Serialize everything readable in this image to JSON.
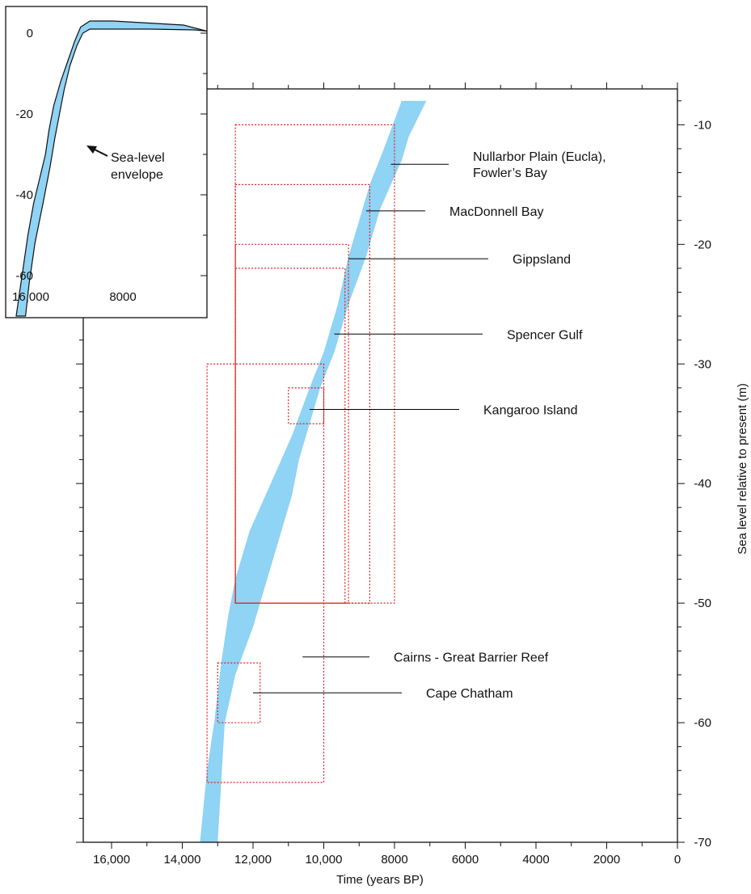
{
  "chart_data": [
    {
      "type": "area",
      "xlabel": "Time (years BP)",
      "ylabel": "Sea level relative to present (m)",
      "xlim": [
        16800,
        0
      ],
      "ylim": [
        -70,
        -7
      ],
      "x_reversed": true,
      "x_tick_labels": [
        "16,000",
        "14,000",
        "12,000",
        "10,000",
        "8000",
        "6000",
        "4000",
        "2000",
        "0"
      ],
      "x_ticks": [
        16000,
        14000,
        12000,
        10000,
        8000,
        6000,
        4000,
        2000,
        0
      ],
      "y_tick_labels": [
        "-10",
        "-20",
        "-30",
        "-40",
        "-50",
        "-60",
        "-70"
      ],
      "y_ticks": [
        -10,
        -20,
        -30,
        -40,
        -50,
        -60,
        -70
      ],
      "colors": {
        "envelope": "#8fd3f5",
        "boxes": "#e02020",
        "leaders": "#000000"
      },
      "envelope": {
        "left_edge": [
          [
            7800,
            -8
          ],
          [
            8300,
            -12
          ],
          [
            8700,
            -15
          ],
          [
            9000,
            -18
          ],
          [
            9300,
            -21
          ],
          [
            9600,
            -25
          ],
          [
            10000,
            -29
          ],
          [
            10400,
            -32
          ],
          [
            10900,
            -36
          ],
          [
            11500,
            -40
          ],
          [
            12100,
            -44
          ],
          [
            12500,
            -48
          ],
          [
            12700,
            -51
          ],
          [
            12900,
            -55
          ],
          [
            13100,
            -60
          ],
          [
            13300,
            -64
          ],
          [
            13500,
            -70
          ]
        ],
        "right_edge": [
          [
            7100,
            -8
          ],
          [
            7600,
            -11
          ],
          [
            7800,
            -13
          ],
          [
            8100,
            -15
          ],
          [
            8400,
            -17
          ],
          [
            8800,
            -21
          ],
          [
            9300,
            -25
          ],
          [
            9700,
            -29
          ],
          [
            10100,
            -32
          ],
          [
            10400,
            -35
          ],
          [
            10700,
            -38
          ],
          [
            10900,
            -41
          ],
          [
            11300,
            -45
          ],
          [
            11700,
            -49
          ],
          [
            12000,
            -52
          ],
          [
            12500,
            -56
          ],
          [
            12800,
            -60
          ],
          [
            12900,
            -65
          ],
          [
            13000,
            -70
          ]
        ]
      },
      "sites": [
        {
          "label": "Nullarbor Plain (Eucla),",
          "label2": "Fowler’s Bay",
          "box": {
            "x0": 12500,
            "x1": 8000,
            "y0": -10,
            "y1": -50
          },
          "leader": {
            "x": 8100,
            "y": -13.3
          }
        },
        {
          "label": "MacDonnell Bay",
          "label2": "",
          "box": {
            "x0": 12500,
            "x1": 8700,
            "y0": -15,
            "y1": -50
          },
          "leader": {
            "x": 8800,
            "y": -17.2
          }
        },
        {
          "label": "Gippsland",
          "label2": "",
          "box": {
            "x0": 12500,
            "x1": 9300,
            "y0": -20,
            "y1": -50
          },
          "leader": {
            "x": 9300,
            "y": -21.2
          }
        },
        {
          "label": "Spencer Gulf",
          "label2": "",
          "box": {
            "x0": 12500,
            "x1": 9400,
            "y0": -22,
            "y1": -50
          },
          "leader": {
            "x": 9700,
            "y": -27.5
          }
        },
        {
          "label": "Kangaroo Island",
          "label2": "",
          "box": {
            "x0": 11000,
            "x1": 10000,
            "y0": -32,
            "y1": -35
          },
          "leader": {
            "x": 10400,
            "y": -33.8
          }
        },
        {
          "label": "Cairns - Great Barrier Reef",
          "label2": "",
          "box": {
            "x0": 13300,
            "x1": 10000,
            "y0": -30,
            "y1": -65
          },
          "leader": {
            "x": 10600,
            "y": -54.5
          }
        },
        {
          "label": "Cape Chatham",
          "label2": "",
          "box": {
            "x0": 13000,
            "x1": 11800,
            "y0": -55,
            "y1": -60
          },
          "leader": {
            "x": 12000,
            "y": -57.5
          }
        }
      ]
    },
    {
      "type": "area",
      "inset": true,
      "xlim": [
        17200,
        0
      ],
      "ylim": [
        -70,
        2
      ],
      "x_tick_labels": [
        "16,000",
        "8000"
      ],
      "x_ticks": [
        16000,
        8000
      ],
      "y_tick_labels": [
        "0",
        "-20",
        "-40",
        "-60"
      ],
      "y_ticks": [
        0,
        -20,
        -40,
        -60
      ],
      "annotation": {
        "line1": "Sea-level",
        "line2": "envelope"
      },
      "colors": {
        "envelope": "#8fd3f5"
      },
      "envelope": {
        "left_edge": [
          [
            16300,
            -70
          ],
          [
            15900,
            -62
          ],
          [
            15300,
            -50
          ],
          [
            14800,
            -42
          ],
          [
            14300,
            -36
          ],
          [
            13800,
            -30
          ],
          [
            13500,
            -24
          ],
          [
            13100,
            -18
          ],
          [
            12500,
            -12
          ],
          [
            11900,
            -7
          ],
          [
            11300,
            -2
          ],
          [
            10800,
            1.5
          ],
          [
            10000,
            3
          ],
          [
            8000,
            3
          ],
          [
            2000,
            2
          ],
          [
            0,
            0.5
          ]
        ],
        "right_edge": [
          [
            15500,
            -70
          ],
          [
            15200,
            -62
          ],
          [
            14700,
            -52
          ],
          [
            14000,
            -42
          ],
          [
            13400,
            -33
          ],
          [
            13000,
            -26
          ],
          [
            12600,
            -20
          ],
          [
            12200,
            -14
          ],
          [
            11700,
            -8
          ],
          [
            11100,
            -3
          ],
          [
            10600,
            0
          ],
          [
            10000,
            1
          ],
          [
            5000,
            1
          ],
          [
            1000,
            0.8
          ],
          [
            0,
            0.5
          ]
        ]
      }
    }
  ]
}
